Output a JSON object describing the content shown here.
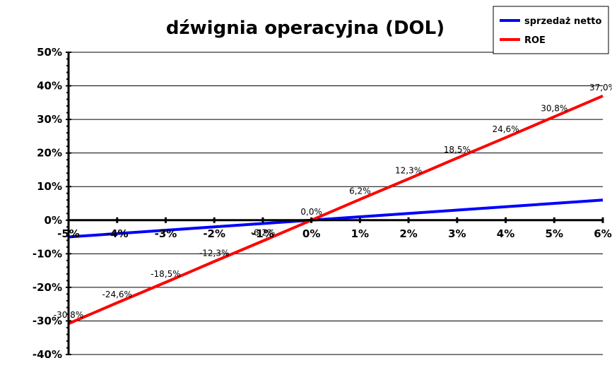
{
  "chart_data": {
    "type": "line",
    "title": "dźwignia operacyjna (DOL)",
    "x": [
      -5,
      -4,
      -3,
      -2,
      -1,
      0,
      1,
      2,
      3,
      4,
      5,
      6
    ],
    "x_tick_labels": [
      "-5%",
      "-4%",
      "-3%",
      "-2%",
      "-1%",
      "0%",
      "1%",
      "2%",
      "3%",
      "4%",
      "5%",
      "6%"
    ],
    "y_tick_labels": [
      "-40%",
      "-30%",
      "-20%",
      "-10%",
      "0%",
      "10%",
      "20%",
      "30%",
      "40%",
      "50%"
    ],
    "ylim": [
      -40,
      50
    ],
    "y_step": 10,
    "grid": true,
    "legend_position": "top-right",
    "series": [
      {
        "name": "sprzedaż netto",
        "color": "#0000ff",
        "values": [
          -5,
          -4,
          -3,
          -2,
          -1,
          0,
          1,
          2,
          3,
          4,
          5,
          6
        ],
        "labels": []
      },
      {
        "name": "ROE",
        "color": "#ff0000",
        "values": [
          -30.8,
          -24.6,
          -18.5,
          -12.3,
          -6.2,
          0.0,
          6.2,
          12.3,
          18.5,
          24.6,
          30.8,
          37.0
        ],
        "labels": [
          "-30,8%",
          "-24,6%",
          "-18,5%",
          "-12,3%",
          "-6,2%",
          "0,0%",
          "6,2%",
          "12,3%",
          "18,5%",
          "24,6%",
          "30,8%",
          "37,0%"
        ]
      }
    ]
  }
}
